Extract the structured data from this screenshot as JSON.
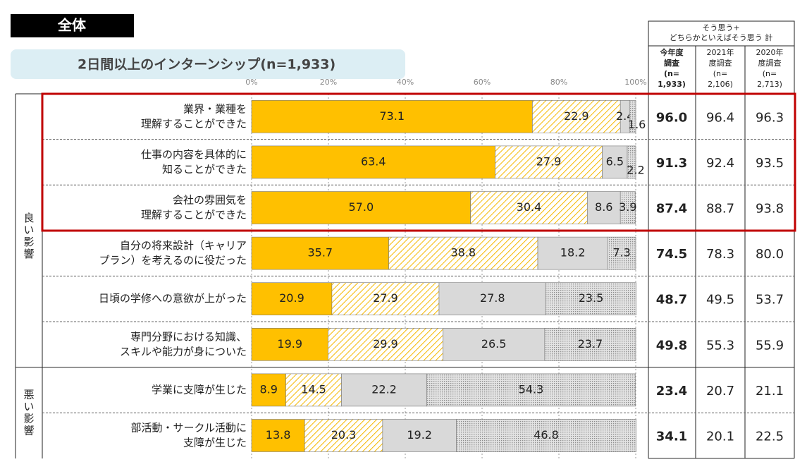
{
  "chart_data": {
    "type": "stacked-bar-h",
    "title": "全体",
    "subtitle": "2日間以上のインターンシップ(n=1,933)",
    "groups": [
      {
        "label": "良い影響",
        "size": 6
      },
      {
        "label": "悪い影響",
        "size": 2
      }
    ],
    "categories": [
      [
        "業界・業種を",
        "理解することができた"
      ],
      [
        "仕事の内容を具体的に",
        "知ることができた"
      ],
      [
        "会社の雰囲気を",
        "理解することができた"
      ],
      [
        "自分の将来設計（キャリア",
        "プラン）を考えるのに役だった"
      ],
      [
        "日頃の学修への意欲が上がった"
      ],
      [
        "専門分野における知識、",
        "スキルや能力が身についた"
      ],
      [
        "学業に支障が生じた"
      ],
      [
        "部活動・サークル活動に",
        "支障が生じた"
      ]
    ],
    "series": [
      {
        "color": "#FFC000",
        "pattern": "solid",
        "values": [
          73.1,
          63.4,
          57.0,
          35.7,
          20.9,
          19.9,
          8.9,
          13.8
        ],
        "value_labels": [
          "73.1",
          "63.4",
          "57.0",
          "35.7",
          "20.9",
          "19.9",
          "8.9",
          "13.8"
        ]
      },
      {
        "color": "#F5B800",
        "pattern": "hatch",
        "values": [
          22.9,
          27.9,
          30.4,
          38.8,
          27.9,
          29.9,
          14.5,
          20.3
        ],
        "value_labels": [
          "22.9",
          "27.9",
          "30.4",
          "38.8",
          "27.9",
          "29.9",
          "14.5",
          "20.3"
        ]
      },
      {
        "color": "#D9D9D9",
        "pattern": "solid",
        "values": [
          2.4,
          6.5,
          8.6,
          18.2,
          27.8,
          26.5,
          22.2,
          19.2
        ],
        "value_labels": [
          "2.4",
          "6.5",
          "8.6",
          "18.2",
          "27.8",
          "26.5",
          "22.2",
          "19.2"
        ]
      },
      {
        "color": "#A6A6A6",
        "pattern": "dots",
        "values": [
          1.6,
          2.2,
          3.9,
          7.3,
          23.5,
          23.7,
          54.3,
          46.8
        ],
        "value_labels": [
          "1.6",
          "2.2",
          "3.9",
          "7.3",
          "23.5",
          "23.7",
          "54.3",
          "46.8"
        ]
      }
    ],
    "xlim": [
      0,
      100
    ],
    "xticks": [
      {
        "value": 0,
        "label": "0%"
      },
      {
        "value": 20,
        "label": "20%"
      },
      {
        "value": 40,
        "label": "40%"
      },
      {
        "value": 60,
        "label": "60%"
      },
      {
        "value": 80,
        "label": "80%"
      },
      {
        "value": 100,
        "label": "100%"
      }
    ],
    "grid": true,
    "table": {
      "header": [
        "そう思う+",
        "どちらかといえばそう思う 計"
      ],
      "columns": [
        {
          "header": [
            "今年度",
            "調査",
            "(n=",
            "1,933)"
          ],
          "values": [
            "96.0",
            "91.3",
            "87.4",
            "74.5",
            "48.7",
            "49.8",
            "23.4",
            "34.1"
          ]
        },
        {
          "header": [
            "2021年",
            "度調査",
            "(n=",
            "2,106)"
          ],
          "values": [
            "96.4",
            "92.4",
            "88.7",
            "78.3",
            "49.5",
            "55.3",
            "20.7",
            "20.1"
          ]
        },
        {
          "header": [
            "2020年",
            "度調査",
            "(n=",
            "2,713)"
          ],
          "values": [
            "96.3",
            "93.5",
            "93.8",
            "80.0",
            "53.7",
            "55.9",
            "21.1",
            "22.5"
          ]
        }
      ]
    }
  }
}
